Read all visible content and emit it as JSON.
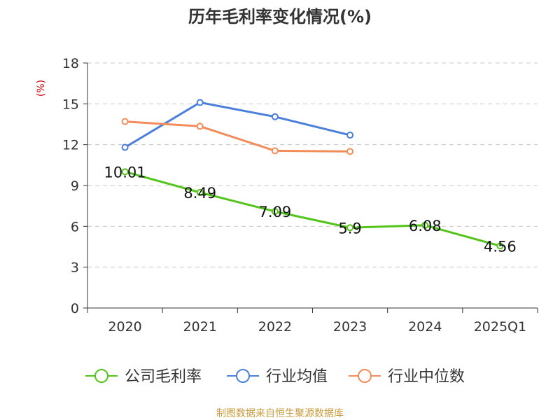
{
  "chart_data": {
    "type": "line",
    "title": "历年毛利率变化情况(%)",
    "ylabel": "(%)",
    "xlabel": "",
    "categories": [
      "2020",
      "2021",
      "2022",
      "2023",
      "2024",
      "2025Q1"
    ],
    "ylim": [
      0,
      18
    ],
    "yticks": [
      0,
      3,
      6,
      9,
      12,
      15,
      18
    ],
    "grid": true,
    "legend_position": "bottom",
    "series": [
      {
        "name": "公司毛利率",
        "color": "#52c41a",
        "values": [
          10.01,
          8.49,
          7.09,
          5.9,
          6.08,
          4.56
        ],
        "labels": [
          "10.01",
          "8.49",
          "7.09",
          "5.9",
          "6.08",
          "4.56"
        ]
      },
      {
        "name": "行业均值",
        "color": "#4a7fdb",
        "values": [
          11.8,
          15.1,
          14.05,
          12.7,
          null,
          null
        ]
      },
      {
        "name": "行业中位数",
        "color": "#f28c5a",
        "values": [
          13.7,
          13.35,
          11.55,
          11.5,
          null,
          null
        ]
      }
    ]
  },
  "footer": {
    "source": "制图数据来自恒生聚源数据库"
  }
}
